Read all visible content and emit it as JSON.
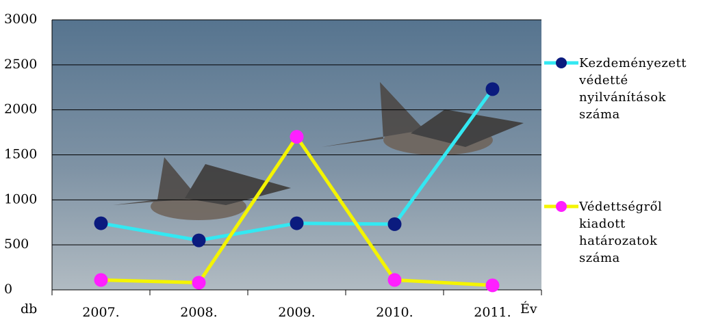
{
  "chart_data": {
    "type": "line",
    "categories": [
      "2007.",
      "2008.",
      "2009.",
      "2010.",
      "2011."
    ],
    "y_label": "db",
    "x_label": "Év",
    "series": [
      {
        "name": "Kezdeményezett védetté nyilvánítások száma",
        "color": "#33e8f2",
        "marker_color": "#0b1b7e",
        "values": [
          740,
          550,
          740,
          730,
          2230
        ]
      },
      {
        "name": "Védettségről kiadott határozatok száma",
        "color": "#f4f400",
        "marker_color": "#ff1fff",
        "values": [
          110,
          80,
          1700,
          110,
          50
        ]
      }
    ],
    "ylim": [
      0,
      3000
    ],
    "yticks": [
      0,
      500,
      1000,
      1500,
      2000,
      2500,
      3000
    ],
    "grid": true,
    "legend": "right"
  }
}
